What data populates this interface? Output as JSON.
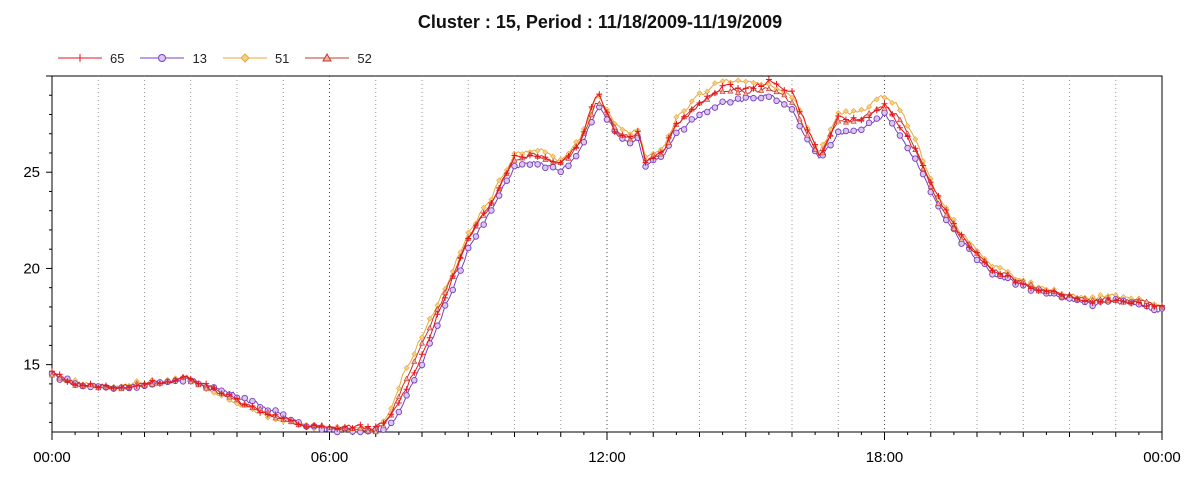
{
  "chart_data": {
    "type": "line",
    "title": "Cluster : 15, Period : 11/18/2009-11/19/2009",
    "xlabel": "",
    "ylabel": "",
    "x_tick_labels": [
      "00:00",
      "06:00",
      "12:00",
      "18:00",
      "00:00"
    ],
    "x_range_hours": [
      0,
      24
    ],
    "y_ticks": [
      15,
      20,
      25
    ],
    "ylim": [
      11.5,
      30
    ],
    "grid": "dotted vertical",
    "legend_position": "top-left",
    "series": [
      {
        "name": "65",
        "color": "#e8141c",
        "marker": "plus",
        "points": [
          [
            0,
            14.6
          ],
          [
            0.5,
            14.0
          ],
          [
            1,
            13.9
          ],
          [
            1.5,
            13.8
          ],
          [
            2,
            14.1
          ],
          [
            2.5,
            14.0
          ],
          [
            2.9,
            14.4
          ],
          [
            3.5,
            13.7
          ],
          [
            4,
            13.2
          ],
          [
            4.5,
            12.6
          ],
          [
            5,
            12.2
          ],
          [
            5.5,
            11.8
          ],
          [
            6,
            11.7
          ],
          [
            6.5,
            11.8
          ],
          [
            7,
            11.7
          ],
          [
            7.3,
            12.2
          ],
          [
            7.6,
            13.5
          ],
          [
            8,
            15.5
          ],
          [
            8.5,
            18.5
          ],
          [
            9,
            21.5
          ],
          [
            9.5,
            23.5
          ],
          [
            10,
            25.8
          ],
          [
            10.5,
            25.9
          ],
          [
            11,
            25.5
          ],
          [
            11.4,
            26.5
          ],
          [
            11.8,
            29.3
          ],
          [
            12.2,
            27.0
          ],
          [
            12.5,
            26.8
          ],
          [
            12.7,
            27.3
          ],
          [
            12.8,
            25.5
          ],
          [
            13.2,
            26.0
          ],
          [
            13.5,
            27.5
          ],
          [
            14,
            28.5
          ],
          [
            14.5,
            29.5
          ],
          [
            15,
            29.3
          ],
          [
            15.5,
            29.7
          ],
          [
            16,
            29.2
          ],
          [
            16.3,
            27.5
          ],
          [
            16.6,
            25.8
          ],
          [
            17,
            27.8
          ],
          [
            17.5,
            27.7
          ],
          [
            18,
            28.5
          ],
          [
            18.3,
            27.5
          ],
          [
            18.7,
            26.0
          ],
          [
            19.2,
            23.5
          ],
          [
            19.7,
            21.5
          ],
          [
            20.3,
            20.0
          ],
          [
            21,
            19.2
          ],
          [
            21.5,
            18.8
          ],
          [
            22,
            18.5
          ],
          [
            22.5,
            18.3
          ],
          [
            23,
            18.4
          ],
          [
            23.5,
            18.2
          ],
          [
            24,
            18.0
          ]
        ]
      },
      {
        "name": "13",
        "color": "#7a3fbf",
        "marker": "circle",
        "points": [
          [
            0,
            14.5
          ],
          [
            0.5,
            14.0
          ],
          [
            1,
            13.8
          ],
          [
            1.5,
            13.8
          ],
          [
            2,
            14.0
          ],
          [
            2.5,
            14.0
          ],
          [
            2.9,
            14.3
          ],
          [
            3.5,
            13.8
          ],
          [
            4,
            13.4
          ],
          [
            4.5,
            12.9
          ],
          [
            5,
            12.3
          ],
          [
            5.5,
            11.9
          ],
          [
            6,
            11.6
          ],
          [
            6.5,
            11.6
          ],
          [
            7,
            11.5
          ],
          [
            7.3,
            11.8
          ],
          [
            7.6,
            13.0
          ],
          [
            8,
            15.0
          ],
          [
            8.5,
            18.0
          ],
          [
            9,
            21.0
          ],
          [
            9.5,
            23.0
          ],
          [
            10,
            25.3
          ],
          [
            10.5,
            25.5
          ],
          [
            11,
            25.0
          ],
          [
            11.4,
            26.0
          ],
          [
            11.8,
            28.5
          ],
          [
            12.2,
            27.0
          ],
          [
            12.5,
            26.5
          ],
          [
            12.7,
            26.8
          ],
          [
            12.8,
            25.3
          ],
          [
            13.2,
            25.8
          ],
          [
            13.5,
            27.0
          ],
          [
            14,
            28.0
          ],
          [
            14.5,
            28.7
          ],
          [
            15,
            28.8
          ],
          [
            15.5,
            29.0
          ],
          [
            16,
            28.2
          ],
          [
            16.3,
            26.8
          ],
          [
            16.6,
            25.6
          ],
          [
            17,
            27.0
          ],
          [
            17.5,
            27.3
          ],
          [
            18,
            28.0
          ],
          [
            18.3,
            27.0
          ],
          [
            18.7,
            25.5
          ],
          [
            19.2,
            23.0
          ],
          [
            19.7,
            21.3
          ],
          [
            20.3,
            19.8
          ],
          [
            21,
            19.1
          ],
          [
            21.5,
            18.7
          ],
          [
            22,
            18.4
          ],
          [
            22.5,
            18.1
          ],
          [
            23,
            18.3
          ],
          [
            23.5,
            18.1
          ],
          [
            24,
            17.8
          ]
        ]
      },
      {
        "name": "51",
        "color": "#e8a838",
        "marker": "diamond",
        "points": [
          [
            0,
            14.5
          ],
          [
            0.5,
            14.1
          ],
          [
            1,
            13.9
          ],
          [
            1.5,
            13.9
          ],
          [
            2,
            14.1
          ],
          [
            2.5,
            14.1
          ],
          [
            2.9,
            14.4
          ],
          [
            3.5,
            13.6
          ],
          [
            4,
            13.0
          ],
          [
            4.5,
            12.5
          ],
          [
            5,
            12.1
          ],
          [
            5.5,
            11.8
          ],
          [
            6,
            11.7
          ],
          [
            6.5,
            11.7
          ],
          [
            7,
            11.7
          ],
          [
            7.3,
            12.5
          ],
          [
            7.6,
            14.5
          ],
          [
            8,
            16.5
          ],
          [
            8.5,
            19.0
          ],
          [
            9,
            21.8
          ],
          [
            9.5,
            23.7
          ],
          [
            10,
            26.0
          ],
          [
            10.5,
            26.2
          ],
          [
            11,
            25.6
          ],
          [
            11.4,
            26.7
          ],
          [
            11.8,
            29.0
          ],
          [
            12.2,
            27.5
          ],
          [
            12.5,
            27.0
          ],
          [
            12.7,
            27.3
          ],
          [
            12.8,
            25.8
          ],
          [
            13.2,
            26.2
          ],
          [
            13.5,
            27.8
          ],
          [
            14,
            29.0
          ],
          [
            14.5,
            29.8
          ],
          [
            15,
            29.6
          ],
          [
            15.5,
            29.6
          ],
          [
            16,
            29.0
          ],
          [
            16.3,
            27.5
          ],
          [
            16.6,
            26.0
          ],
          [
            17,
            28.0
          ],
          [
            17.5,
            28.2
          ],
          [
            18,
            29.0
          ],
          [
            18.3,
            28.5
          ],
          [
            18.7,
            26.5
          ],
          [
            19.2,
            23.5
          ],
          [
            19.7,
            21.7
          ],
          [
            20.3,
            20.2
          ],
          [
            21,
            19.3
          ],
          [
            21.5,
            18.9
          ],
          [
            22,
            18.6
          ],
          [
            22.5,
            18.5
          ],
          [
            23,
            18.6
          ],
          [
            23.5,
            18.4
          ],
          [
            24,
            18.1
          ]
        ]
      },
      {
        "name": "52",
        "color": "#c0392b",
        "marker": "triangle",
        "points": [
          [
            0,
            14.5
          ],
          [
            0.5,
            14.0
          ],
          [
            1,
            13.9
          ],
          [
            1.5,
            13.8
          ],
          [
            2,
            14.0
          ],
          [
            2.5,
            14.0
          ],
          [
            2.9,
            14.3
          ],
          [
            3.5,
            13.7
          ],
          [
            4,
            13.1
          ],
          [
            4.5,
            12.6
          ],
          [
            5,
            12.1
          ],
          [
            5.5,
            11.8
          ],
          [
            6,
            11.7
          ],
          [
            6.5,
            11.7
          ],
          [
            7,
            11.6
          ],
          [
            7.3,
            12.2
          ],
          [
            7.6,
            14.0
          ],
          [
            8,
            16.0
          ],
          [
            8.5,
            18.7
          ],
          [
            9,
            21.5
          ],
          [
            9.5,
            23.4
          ],
          [
            10,
            25.7
          ],
          [
            10.5,
            25.9
          ],
          [
            11,
            25.4
          ],
          [
            11.4,
            26.4
          ],
          [
            11.8,
            28.8
          ],
          [
            12.2,
            27.2
          ],
          [
            12.5,
            26.8
          ],
          [
            12.7,
            27.0
          ],
          [
            12.8,
            25.6
          ],
          [
            13.2,
            26.0
          ],
          [
            13.5,
            27.4
          ],
          [
            14,
            28.6
          ],
          [
            14.5,
            29.3
          ],
          [
            15,
            29.2
          ],
          [
            15.5,
            29.3
          ],
          [
            16,
            28.7
          ],
          [
            16.3,
            27.2
          ],
          [
            16.6,
            25.8
          ],
          [
            17,
            27.6
          ],
          [
            17.5,
            27.8
          ],
          [
            18,
            28.4
          ],
          [
            18.3,
            27.9
          ],
          [
            18.7,
            26.0
          ],
          [
            19.2,
            23.2
          ],
          [
            19.7,
            21.5
          ],
          [
            20.3,
            20.0
          ],
          [
            21,
            19.2
          ],
          [
            21.5,
            18.8
          ],
          [
            22,
            18.5
          ],
          [
            22.5,
            18.3
          ],
          [
            23,
            18.4
          ],
          [
            23.5,
            18.3
          ],
          [
            24,
            18.0
          ]
        ]
      }
    ]
  }
}
